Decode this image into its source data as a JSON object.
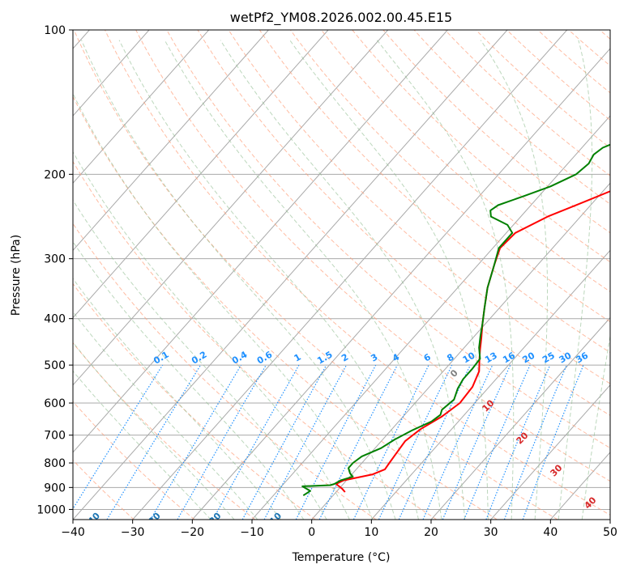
{
  "chart_data": {
    "type": "line",
    "title": "wetPf2_YM08.2026.002.00.45.E15",
    "xlabel": "Temperature (°C)",
    "ylabel": "Pressure (hPa)",
    "xlim": [
      -40,
      50
    ],
    "ylim": [
      1050,
      100
    ],
    "x_ticks": [
      -40,
      -30,
      -20,
      -10,
      0,
      10,
      20,
      30,
      40,
      50
    ],
    "x_tick_labels": [
      "−40",
      "−30",
      "−20",
      "−10",
      "0",
      "10",
      "20",
      "30",
      "40",
      "50"
    ],
    "y_ticks": [
      100,
      200,
      300,
      400,
      500,
      600,
      700,
      800,
      900,
      1000
    ],
    "y_tick_labels": [
      "100",
      "200",
      "300",
      "400",
      "500",
      "600",
      "700",
      "800",
      "900",
      "1000"
    ],
    "series": [
      {
        "name": "Temperature",
        "color": "#ff0000",
        "points": [
          [
            1.5,
            920
          ],
          [
            0.5,
            905
          ],
          [
            -1.2,
            885
          ],
          [
            -0.5,
            870
          ],
          [
            3.5,
            845
          ],
          [
            4.8,
            825
          ],
          [
            4.6,
            800
          ],
          [
            4.3,
            760
          ],
          [
            4.0,
            720
          ],
          [
            4.8,
            680
          ],
          [
            6.5,
            640
          ],
          [
            7.5,
            600
          ],
          [
            7.2,
            555
          ],
          [
            6.0,
            515
          ],
          [
            4.2,
            485
          ],
          [
            3.0,
            465
          ],
          [
            1.5,
            440
          ],
          [
            -0.5,
            410
          ],
          [
            -2.5,
            380
          ],
          [
            -5.0,
            345
          ],
          [
            -7.2,
            310
          ],
          [
            -8.8,
            285
          ],
          [
            -8.5,
            265
          ],
          [
            -5.5,
            245
          ],
          [
            -1.5,
            228
          ],
          [
            2.5,
            212
          ],
          [
            7.0,
            200
          ],
          [
            12.0,
            188
          ],
          [
            14.5,
            175
          ],
          [
            15.5,
            162
          ],
          [
            17.5,
            150
          ],
          [
            21.0,
            138
          ],
          [
            24.0,
            128
          ],
          [
            24.5,
            122
          ],
          [
            27.0,
            115
          ],
          [
            32.0,
            108
          ],
          [
            36.0,
            100
          ]
        ]
      },
      {
        "name": "Dewpoint",
        "color": "#008000",
        "points": [
          [
            -5.0,
            935
          ],
          [
            -4.5,
            915
          ],
          [
            -5.5,
            905
          ],
          [
            -6.5,
            895
          ],
          [
            -2.0,
            890
          ],
          [
            -1.5,
            885
          ],
          [
            -1.0,
            870
          ],
          [
            0.5,
            855
          ],
          [
            -0.5,
            840
          ],
          [
            -1.5,
            820
          ],
          [
            -1.5,
            800
          ],
          [
            -1.0,
            775
          ],
          [
            1.0,
            745
          ],
          [
            2.0,
            715
          ],
          [
            3.5,
            685
          ],
          [
            5.5,
            655
          ],
          [
            6.0,
            635
          ],
          [
            5.5,
            620
          ],
          [
            6.0,
            590
          ],
          [
            5.0,
            560
          ],
          [
            4.5,
            535
          ],
          [
            4.5,
            510
          ],
          [
            4.3,
            485
          ],
          [
            2.5,
            460
          ],
          [
            1.0,
            435
          ],
          [
            -0.5,
            410
          ],
          [
            -2.5,
            380
          ],
          [
            -5.0,
            345
          ],
          [
            -7.2,
            310
          ],
          [
            -9.0,
            285
          ],
          [
            -9.0,
            265
          ],
          [
            -11.0,
            255
          ],
          [
            -15.0,
            245
          ],
          [
            -16.0,
            238
          ],
          [
            -15.5,
            232
          ],
          [
            -12.5,
            222
          ],
          [
            -9.5,
            212
          ],
          [
            -7.0,
            200
          ],
          [
            -6.5,
            190
          ],
          [
            -7.0,
            182
          ],
          [
            -6.5,
            176
          ],
          [
            -4.0,
            168
          ],
          [
            0.5,
            158
          ],
          [
            1.5,
            150
          ],
          [
            1.5,
            143
          ],
          [
            3.0,
            134
          ],
          [
            6.5,
            124
          ],
          [
            10.0,
            116
          ],
          [
            12.5,
            108
          ],
          [
            13.5,
            104
          ],
          [
            14.5,
            100
          ]
        ]
      }
    ],
    "mixing_ratio_labels": [
      "0.1",
      "0.2",
      "0.4",
      "0.6",
      "1",
      "1.5",
      "2",
      "3",
      "4",
      "6",
      "8",
      "10",
      "13",
      "16",
      "20",
      "25",
      "30",
      "36"
    ],
    "dry_adiabat_labels": [
      "-100",
      "-90",
      "-80",
      "-70",
      "-60",
      "-50",
      "-40",
      "-30",
      "-20",
      "-10"
    ],
    "moist_adiabat_labels": [
      "0",
      "10",
      "20",
      "30",
      "40"
    ],
    "colors": {
      "temperature": "#ff0000",
      "dewpoint": "#008000",
      "dry_adiabat": "#ffa07a",
      "moist_adiabat": "#8fbc8f",
      "mixing_ratio": "#1e90ff",
      "isotherm": "#a9a9a9",
      "dry_label": "#1f77b4",
      "moist_label": "#d62728"
    }
  }
}
